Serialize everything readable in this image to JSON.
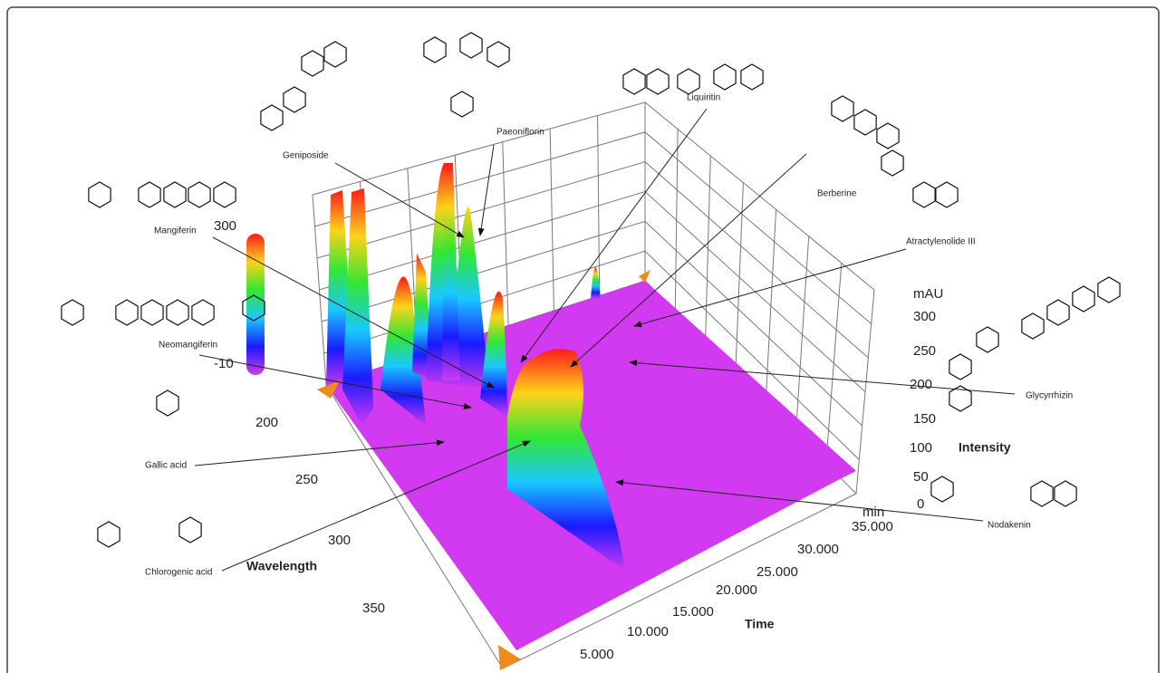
{
  "color_scale": {
    "top": "300",
    "bottom": "-10"
  },
  "intensity_axis": {
    "unit": "mAU",
    "label": "Intensity",
    "ticks": [
      "300",
      "250",
      "200",
      "150",
      "100",
      "50",
      "0"
    ]
  },
  "time_axis": {
    "unit": "min",
    "label": "Time",
    "ticks": [
      "35.000",
      "30.000",
      "25.000",
      "20.000",
      "15.000",
      "10.000",
      "5.000"
    ]
  },
  "wavelength_axis": {
    "label": "Wavelength",
    "ticks": [
      "200",
      "250",
      "300",
      "350"
    ]
  },
  "compounds": [
    "Geniposide",
    "Paeoniflorin",
    "Liquiritin",
    "Berberine",
    "Mangiferin",
    "Atractylenolide III",
    "Neomangiferin",
    "Glycyrrhizin",
    "Gallic acid",
    "Nodakenin",
    "Chlorogenic acid"
  ]
}
